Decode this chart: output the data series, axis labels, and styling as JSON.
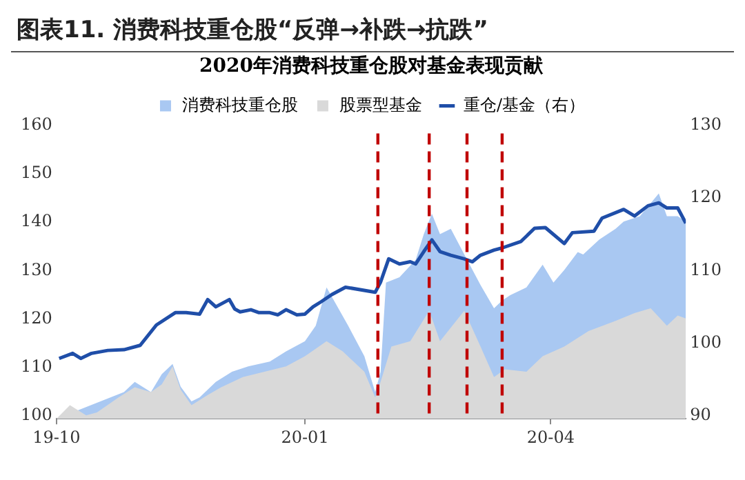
{
  "chart_data": {
    "type": "area",
    "title": "图表11.  消费科技重仓股“反弹→补跌→抗跌”",
    "subtitle": "2020年消费科技重仓股对基金表现贡献",
    "xlim": [
      "2019-10-01",
      "2020-05-21"
    ],
    "xticks": [
      {
        "value": "2019-10",
        "label": "19-10"
      },
      {
        "value": "2020-01",
        "label": "20-01"
      },
      {
        "value": "2020-04",
        "label": "20-04"
      }
    ],
    "ylim": [
      100,
      160
    ],
    "yticks": [
      100,
      110,
      120,
      130,
      140,
      150,
      160
    ],
    "y2lim": [
      90,
      130
    ],
    "y2ticks": [
      90,
      100,
      110,
      120,
      130
    ],
    "grid": false,
    "legend": "top",
    "ref_lines": [
      {
        "axis": "x",
        "value": "2020-01-28",
        "color": "#c00000",
        "line_style": "dashed"
      },
      {
        "axis": "x",
        "value": "2020-02-16",
        "color": "#c00000",
        "line_style": "dashed"
      },
      {
        "axis": "x",
        "value": "2020-03-01",
        "color": "#c00000",
        "line_style": "dashed"
      },
      {
        "axis": "x",
        "value": "2020-03-14",
        "color": "#c00000",
        "line_style": "dashed"
      }
    ],
    "series": [
      {
        "name": "消费科技重仓股",
        "color": "#a9c8f2",
        "x": [
          "2019-10-01",
          "2019-10-06",
          "2019-10-16",
          "2019-10-26",
          "2019-10-30",
          "2019-11-05",
          "2019-11-09",
          "2019-11-13",
          "2019-11-16",
          "2019-11-20",
          "2019-11-23",
          "2019-11-29",
          "2019-12-05",
          "2019-12-11",
          "2019-12-19",
          "2019-12-25",
          "2020-01-01",
          "2020-01-05",
          "2020-01-09",
          "2020-01-17",
          "2020-01-23",
          "2020-01-27",
          "2020-01-29",
          "2020-01-31",
          "2020-02-05",
          "2020-02-11",
          "2020-02-14",
          "2020-02-17",
          "2020-02-20",
          "2020-02-24",
          "2020-02-29",
          "2020-03-06",
          "2020-03-11",
          "2020-03-14",
          "2020-03-17",
          "2020-03-23",
          "2020-03-29",
          "2020-04-02",
          "2020-04-06",
          "2020-04-11",
          "2020-04-13",
          "2020-04-19",
          "2020-04-25",
          "2020-04-28",
          "2020-05-04",
          "2020-05-11",
          "2020-05-14",
          "2020-05-18",
          "2020-05-21"
        ],
        "values": [
          100,
          null,
          null,
          105.5,
          107.6,
          105.5,
          109.2,
          111.3,
          106.6,
          103.6,
          104.4,
          107.6,
          109.7,
          110.8,
          111.8,
          113.9,
          116,
          119.2,
          127.1,
          119.2,
          112.9,
          105.5,
          109.7,
          128.1,
          129.2,
          132.8,
          138.1,
          142.3,
          138.1,
          139.2,
          133.9,
          127.6,
          122.8,
          124.4,
          125.5,
          127.1,
          131.8,
          128.1,
          130.7,
          134.4,
          133.9,
          137,
          139.2,
          140.7,
          141.8,
          146.5,
          141.8,
          141.8,
          140.7
        ]
      },
      {
        "name": "股票型基金",
        "color": "#d9d9d9",
        "x": [
          "2019-10-01",
          "2019-10-06",
          "2019-10-12",
          "2019-10-16",
          "2019-10-24",
          "2019-10-30",
          "2019-11-05",
          "2019-11-09",
          "2019-11-13",
          "2019-11-16",
          "2019-11-20",
          "2019-11-26",
          "2019-12-01",
          "2019-12-09",
          "2019-12-17",
          "2019-12-25",
          "2020-01-01",
          "2020-01-09",
          "2020-01-15",
          "2020-01-23",
          "2020-01-27",
          "2020-01-29",
          "2020-02-02",
          "2020-02-09",
          "2020-02-16",
          "2020-02-20",
          "2020-02-29",
          "2020-03-06",
          "2020-03-11",
          "2020-03-15",
          "2020-03-23",
          "2020-03-29",
          "2020-04-06",
          "2020-04-15",
          "2020-04-25",
          "2020-05-02",
          "2020-05-08",
          "2020-05-14",
          "2020-05-18",
          "2020-05-21"
        ],
        "values": [
          100,
          102.8,
          100.7,
          101.3,
          104.4,
          106.5,
          105.5,
          107.1,
          110.8,
          106,
          102.8,
          104.9,
          106.5,
          108.6,
          109.7,
          110.8,
          112.9,
          116,
          113.9,
          109.7,
          104.4,
          107.6,
          114.9,
          116,
          122.3,
          116,
          122.3,
          114.9,
          108.6,
          110.2,
          109.7,
          112.9,
          114.9,
          118.1,
          120.2,
          121.8,
          122.8,
          119.2,
          121.3,
          120.7
        ]
      },
      {
        "name": "重仓/基金（右）",
        "type": "line",
        "axis": "y2",
        "color": "#1f4ea8",
        "x": [
          "2019-10-02",
          "2019-10-07",
          "2019-10-10",
          "2019-10-14",
          "2019-10-20",
          "2019-10-26",
          "2019-11-01",
          "2019-11-07",
          "2019-11-14",
          "2019-11-18",
          "2019-11-23",
          "2019-11-26",
          "2019-11-29",
          "2019-12-04",
          "2019-12-06",
          "2019-12-08",
          "2019-12-12",
          "2019-12-15",
          "2019-12-19",
          "2019-12-22",
          "2019-12-25",
          "2019-12-29",
          "2020-01-01",
          "2020-01-04",
          "2020-01-07",
          "2020-01-11",
          "2020-01-16",
          "2020-01-27",
          "2020-01-29",
          "2020-02-01",
          "2020-02-05",
          "2020-02-09",
          "2020-02-11",
          "2020-02-14",
          "2020-02-17",
          "2020-02-20",
          "2020-02-24",
          "2020-02-29",
          "2020-03-03",
          "2020-03-06",
          "2020-03-11",
          "2020-03-14",
          "2020-03-21",
          "2020-03-26",
          "2020-03-30",
          "2020-04-06",
          "2020-04-09",
          "2020-04-17",
          "2020-04-20",
          "2020-04-28",
          "2020-05-02",
          "2020-05-07",
          "2020-05-11",
          "2020-05-14",
          "2020-05-18",
          "2020-05-21"
        ],
        "values": [
          98.3,
          99,
          98.3,
          99,
          99.4,
          99.5,
          100.1,
          102.9,
          104.6,
          104.6,
          104.4,
          106.4,
          105.4,
          106.4,
          105.1,
          104.7,
          105,
          104.6,
          104.6,
          104.3,
          105,
          104.3,
          104.4,
          105.4,
          106.1,
          107.1,
          108.1,
          107.4,
          108.8,
          112,
          111.3,
          111.6,
          111.3,
          113,
          114.6,
          113,
          112.5,
          112,
          111.6,
          112.5,
          113.2,
          113.5,
          114.4,
          116.2,
          116.3,
          114.1,
          115.6,
          115.8,
          117.6,
          118.8,
          117.9,
          119.3,
          119.7,
          119,
          119,
          116.9
        ]
      }
    ]
  }
}
